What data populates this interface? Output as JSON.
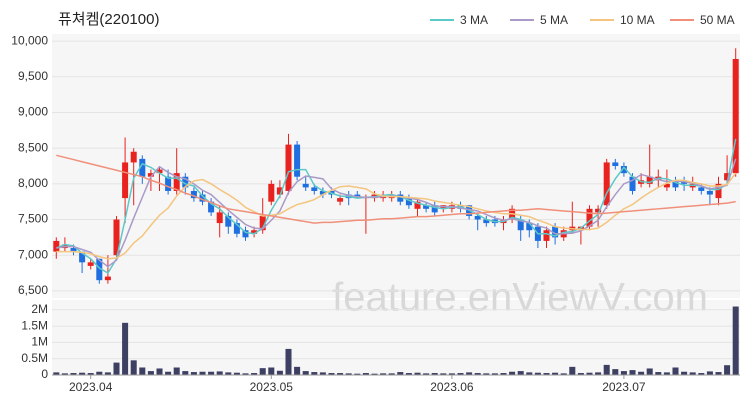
{
  "chart_data": [
    {
      "type": "candlestick",
      "title": "퓨쳐켐(220100)",
      "watermark": "feature.enViewV.com",
      "up_color": "#e8221f",
      "down_color": "#1f6fe0",
      "ylim": [
        6400,
        10100
      ],
      "yticks": [
        {
          "value": 6500,
          "label": "6,500"
        },
        {
          "value": 7000,
          "label": "7,000"
        },
        {
          "value": 7500,
          "label": "7,500"
        },
        {
          "value": 8000,
          "label": "8,000"
        },
        {
          "value": 8500,
          "label": "8,500"
        },
        {
          "value": 9000,
          "label": "9,000"
        },
        {
          "value": 9500,
          "label": "9,500"
        },
        {
          "value": 10000,
          "label": "10,000"
        }
      ],
      "open": [
        7050,
        7100,
        7100,
        7050,
        6850,
        6950,
        6650,
        7000,
        7800,
        8300,
        8350,
        8100,
        8150,
        8100,
        7900,
        8100,
        7900,
        7850,
        7750,
        7450,
        7550,
        7450,
        7350,
        7300,
        7350,
        7750,
        7850,
        7900,
        8550,
        8000,
        7950,
        7900,
        7900,
        7750,
        7850,
        7850,
        7800,
        7800,
        7800,
        7800,
        7850,
        7800,
        7650,
        7700,
        7700,
        7650,
        7650,
        7700,
        7700,
        7550,
        7500,
        7500,
        7450,
        7500,
        7500,
        7450,
        7400,
        7200,
        7400,
        7250,
        7350,
        7350,
        7400,
        7600,
        7700,
        8300,
        8250,
        8100,
        8000,
        8000,
        8050,
        7950,
        8050,
        8050,
        7950,
        7950,
        7900,
        7800,
        8050,
        8150
      ],
      "high": [
        7250,
        7250,
        7150,
        7050,
        6950,
        6950,
        7000,
        7550,
        8650,
        8500,
        8400,
        8200,
        8250,
        8200,
        8500,
        8150,
        7950,
        7900,
        7800,
        7700,
        7600,
        7500,
        7400,
        7400,
        7800,
        8050,
        8050,
        8700,
        8600,
        8100,
        8000,
        7950,
        7950,
        7850,
        7900,
        7900,
        7850,
        7900,
        7900,
        7900,
        7900,
        7850,
        7800,
        7750,
        7750,
        7700,
        7750,
        7750,
        7700,
        7600,
        7550,
        7550,
        7550,
        7700,
        7550,
        7500,
        7450,
        7400,
        7450,
        7400,
        7750,
        7400,
        7700,
        7700,
        8350,
        8350,
        8300,
        8150,
        8150,
        8550,
        8200,
        8200,
        8100,
        8100,
        8100,
        8000,
        7950,
        8100,
        8400,
        9900
      ],
      "low": [
        6950,
        7050,
        7000,
        6750,
        6800,
        6600,
        6600,
        6950,
        7450,
        7700,
        8000,
        7900,
        7900,
        7850,
        7850,
        7850,
        7750,
        7700,
        7550,
        7250,
        7300,
        7250,
        7200,
        7250,
        7300,
        7700,
        7800,
        7850,
        8050,
        7900,
        7850,
        7800,
        7800,
        7700,
        7700,
        7800,
        7300,
        7750,
        7750,
        7750,
        7700,
        7650,
        7550,
        7600,
        7550,
        7600,
        7600,
        7600,
        7500,
        7350,
        7400,
        7400,
        7350,
        7450,
        7200,
        7250,
        7100,
        7100,
        7150,
        7200,
        7300,
        7150,
        7350,
        7400,
        7650,
        8200,
        8100,
        7850,
        7950,
        7950,
        7950,
        7900,
        7900,
        7900,
        7900,
        7850,
        7700,
        7700,
        8000,
        8100
      ],
      "close": [
        7200,
        7150,
        7050,
        6900,
        6900,
        6650,
        6700,
        7500,
        8300,
        8450,
        8100,
        8150,
        8200,
        7900,
        8150,
        7950,
        7800,
        7750,
        7600,
        7600,
        7400,
        7300,
        7250,
        7350,
        7550,
        8000,
        7950,
        8550,
        8100,
        7950,
        7900,
        7850,
        7850,
        7800,
        7800,
        7800,
        7820,
        7850,
        7850,
        7850,
        7750,
        7700,
        7750,
        7650,
        7600,
        7700,
        7700,
        7650,
        7550,
        7500,
        7450,
        7450,
        7500,
        7650,
        7350,
        7350,
        7200,
        7350,
        7250,
        7350,
        7400,
        7400,
        7650,
        7650,
        8300,
        8250,
        8150,
        7900,
        8050,
        8100,
        8100,
        8000,
        7950,
        8000,
        8000,
        7900,
        7850,
        8000,
        8150,
        9750
      ],
      "series": [
        {
          "name": "3 MA",
          "color": "#5cc8c8",
          "values": [
            7100,
            7150,
            7130,
            7030,
            6950,
            6820,
            6750,
            6950,
            7500,
            8080,
            8280,
            8230,
            8150,
            8080,
            8080,
            8000,
            7970,
            7830,
            7720,
            7650,
            7530,
            7430,
            7320,
            7300,
            7380,
            7630,
            7830,
            8170,
            8200,
            8200,
            7980,
            7900,
            7870,
            7830,
            7820,
            7800,
            7810,
            7820,
            7840,
            7850,
            7820,
            7770,
            7730,
            7700,
            7670,
            7650,
            7670,
            7680,
            7630,
            7570,
            7500,
            7470,
            7470,
            7530,
            7500,
            7450,
            7300,
            7300,
            7270,
            7320,
            7330,
            7380,
            7480,
            7570,
            7870,
            8070,
            8230,
            8100,
            8030,
            8020,
            8080,
            8070,
            8020,
            7980,
            7980,
            7970,
            7920,
            7920,
            8000,
            8630
          ]
        },
        {
          "name": "5 MA",
          "color": "#a99ac8",
          "values": [
            7100,
            7120,
            7120,
            7080,
            7040,
            6930,
            6840,
            6930,
            7210,
            7520,
            7810,
            8100,
            8240,
            8160,
            8100,
            8070,
            8000,
            7910,
            7850,
            7740,
            7630,
            7530,
            7430,
            7380,
            7370,
            7490,
            7620,
            7880,
            8030,
            8110,
            8090,
            8070,
            7930,
            7870,
            7840,
            7820,
            7810,
            7810,
            7820,
            7830,
            7820,
            7800,
            7780,
            7740,
            7690,
            7680,
            7680,
            7660,
            7640,
            7620,
            7570,
            7520,
            7490,
            7510,
            7480,
            7460,
            7410,
            7380,
            7300,
            7300,
            7310,
            7340,
            7410,
            7490,
            7680,
            7850,
            8000,
            8050,
            8130,
            8100,
            8060,
            8030,
            8040,
            8030,
            8010,
            7970,
            7930,
            7950,
            7980,
            8350
          ]
        },
        {
          "name": "10 MA",
          "color": "#f3c57e",
          "values": [
            7050,
            7050,
            7050,
            7040,
            7020,
            6980,
            6950,
            6960,
            7030,
            7170,
            7270,
            7420,
            7560,
            7660,
            7830,
            7960,
            8040,
            8060,
            8000,
            7920,
            7850,
            7770,
            7670,
            7610,
            7550,
            7560,
            7580,
            7650,
            7710,
            7740,
            7780,
            7850,
            7910,
            7960,
            7970,
            7950,
            7930,
            7860,
            7830,
            7820,
            7820,
            7810,
            7800,
            7790,
            7760,
            7740,
            7720,
            7700,
            7680,
            7650,
            7620,
            7600,
            7580,
            7580,
            7560,
            7540,
            7490,
            7450,
            7400,
            7380,
            7370,
            7360,
            7360,
            7380,
            7460,
            7560,
            7650,
            7710,
            7800,
            7880,
            7950,
            8010,
            8050,
            8050,
            8020,
            8000,
            7970,
            7970,
            7990,
            8150
          ]
        },
        {
          "name": "50 MA",
          "color": "#f0907a",
          "values": [
            8400,
            8370,
            8340,
            8310,
            8280,
            8250,
            8220,
            8190,
            8160,
            8130,
            8100,
            8050,
            8010,
            7960,
            7920,
            7870,
            7830,
            7780,
            7740,
            7690,
            7650,
            7630,
            7610,
            7590,
            7570,
            7550,
            7530,
            7510,
            7490,
            7470,
            7450,
            7460,
            7460,
            7470,
            7480,
            7490,
            7490,
            7500,
            7510,
            7510,
            7520,
            7530,
            7540,
            7540,
            7550,
            7560,
            7570,
            7580,
            7580,
            7590,
            7600,
            7610,
            7620,
            7630,
            7630,
            7640,
            7650,
            7640,
            7630,
            7620,
            7610,
            7600,
            7590,
            7580,
            7590,
            7600,
            7610,
            7620,
            7630,
            7640,
            7650,
            7660,
            7670,
            7680,
            7690,
            7700,
            7710,
            7720,
            7730,
            7750
          ]
        }
      ]
    },
    {
      "type": "bar",
      "color": "#3d3f63",
      "categories": [
        null,
        null,
        null,
        null,
        "2023.04",
        null,
        null,
        null,
        null,
        null,
        null,
        null,
        null,
        null,
        null,
        null,
        null,
        null,
        null,
        null,
        null,
        null,
        null,
        null,
        null,
        "2023.05",
        null,
        null,
        null,
        null,
        null,
        null,
        null,
        null,
        null,
        null,
        null,
        null,
        null,
        null,
        null,
        null,
        null,
        null,
        null,
        null,
        "2023.06",
        null,
        null,
        null,
        null,
        null,
        null,
        null,
        null,
        null,
        null,
        null,
        null,
        null,
        null,
        null,
        null,
        null,
        null,
        null,
        "2023.07",
        null,
        null,
        null,
        null,
        null,
        null,
        null,
        null,
        null,
        null,
        null,
        null,
        null
      ],
      "values": [
        80000,
        50000,
        60000,
        70000,
        60000,
        100000,
        80000,
        380000,
        1600000,
        450000,
        230000,
        120000,
        200000,
        100000,
        230000,
        120000,
        90000,
        100000,
        100000,
        110000,
        80000,
        70000,
        50000,
        60000,
        210000,
        230000,
        130000,
        800000,
        250000,
        120000,
        90000,
        80000,
        60000,
        60000,
        50000,
        40000,
        60000,
        40000,
        50000,
        50000,
        90000,
        60000,
        70000,
        50000,
        60000,
        50000,
        50000,
        60000,
        80000,
        60000,
        50000,
        50000,
        60000,
        100000,
        120000,
        80000,
        70000,
        60000,
        70000,
        50000,
        250000,
        60000,
        70000,
        80000,
        310000,
        180000,
        120000,
        150000,
        100000,
        200000,
        90000,
        80000,
        230000,
        100000,
        80000,
        60000,
        110000,
        90000,
        300000,
        2100000
      ],
      "ylim": [
        0,
        2300000
      ],
      "yticks": [
        0,
        {
          "value": 500000,
          "label": "0.5M"
        },
        {
          "value": 1000000,
          "label": "1M"
        },
        {
          "value": 1500000,
          "label": "1.5M"
        },
        {
          "value": 2000000,
          "label": "2M"
        }
      ]
    }
  ]
}
